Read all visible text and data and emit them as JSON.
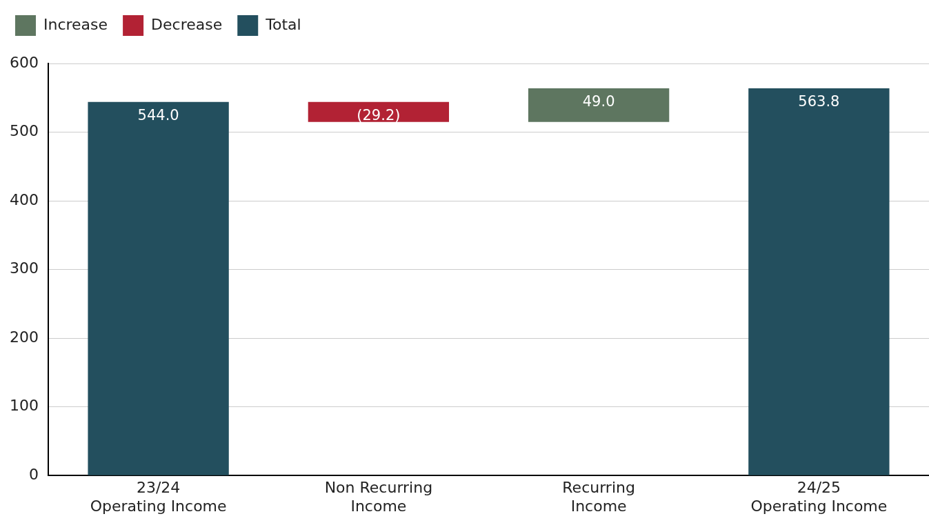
{
  "chart_data": {
    "type": "bar",
    "categories": [
      "23/24\nOperating Income",
      "Non Recurring\nIncome",
      "Recurring\nIncome",
      "24/25\nOperating Income"
    ],
    "series": [
      {
        "name": "Increase",
        "color": "#5e7660",
        "base": [
          null,
          null,
          514.8,
          null
        ],
        "values": [
          null,
          null,
          49.0,
          null
        ],
        "value_labels": [
          null,
          null,
          "49.0",
          null
        ]
      },
      {
        "name": "Decrease",
        "color": "#b22234",
        "base": [
          null,
          544.0,
          null,
          null
        ],
        "values": [
          null,
          -29.2,
          null,
          null
        ],
        "value_labels": [
          null,
          "(29.2)",
          null,
          null
        ]
      },
      {
        "name": "Total",
        "color": "#234f5e",
        "values": [
          544.0,
          null,
          null,
          563.8
        ],
        "value_labels": [
          "544.0",
          null,
          null,
          "563.8"
        ]
      }
    ],
    "ylim": [
      0,
      600
    ],
    "yticks": [
      0,
      100,
      200,
      300,
      400,
      500,
      600
    ],
    "grid": "y",
    "legend": "top left"
  }
}
